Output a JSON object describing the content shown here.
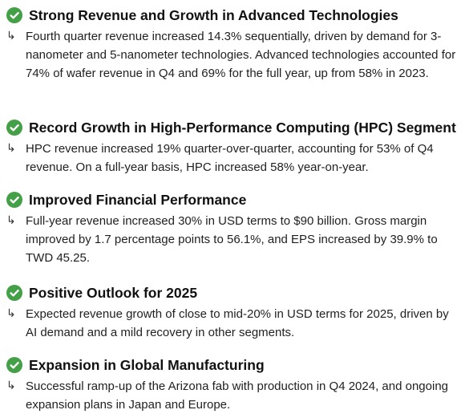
{
  "bullet_icon": "check-circle-icon",
  "sub_icon": "return-arrow-icon",
  "accent_color": "#43a047",
  "arrow_glyph": "↳",
  "items": [
    {
      "title": "Strong Revenue and Growth in Advanced Technologies",
      "text": "Fourth quarter revenue increased 14.3% sequentially, driven by demand for 3-nanometer and 5-nanometer technologies. Advanced technologies accounted for 74% of wafer revenue in Q4 and 69% for the full year, up from 58% in 2023."
    },
    {
      "title": "Record Growth in High-Performance Computing (HPC) Segment",
      "text": "HPC revenue increased 19% quarter-over-quarter, accounting for 53% of Q4 revenue. On a full-year basis, HPC increased 58% year-on-year."
    },
    {
      "title": "Improved Financial Performance",
      "text": "Full-year revenue increased 30% in USD terms to $90 billion. Gross margin improved by 1.7 percentage points to 56.1%, and EPS increased by 39.9% to TWD 45.25."
    },
    {
      "title": "Positive Outlook for 2025",
      "text": "Expected revenue growth of close to mid-20% in USD terms for 2025, driven by AI demand and a mild recovery in other segments."
    },
    {
      "title": "Expansion in Global Manufacturing",
      "text": "Successful ramp-up of the Arizona fab with production in Q4 2024, and ongoing expansion plans in Japan and Europe."
    }
  ]
}
